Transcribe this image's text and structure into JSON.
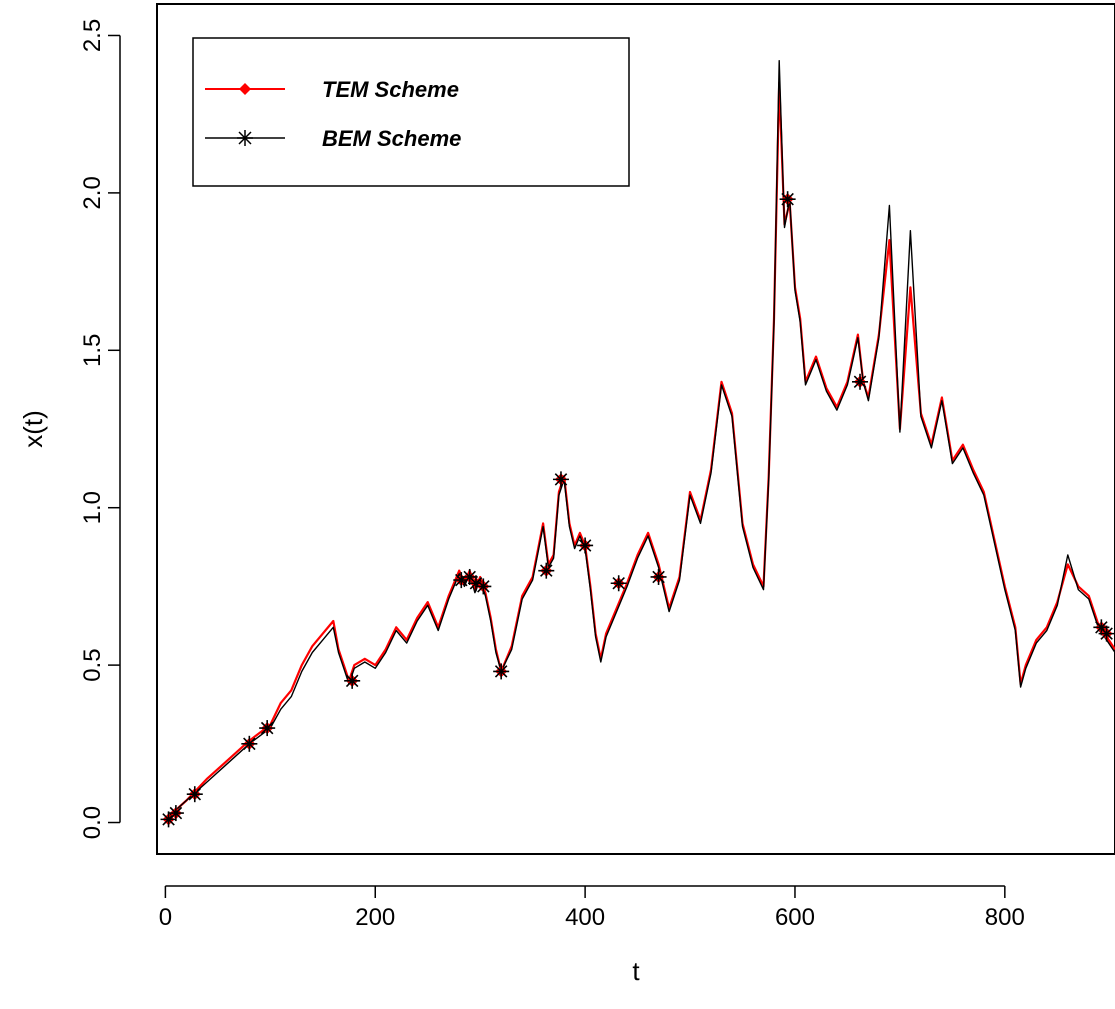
{
  "chart_data": {
    "type": "line",
    "title": "",
    "xlabel": "t",
    "ylabel": "x(t)",
    "xlim": [
      -8,
      905
    ],
    "ylim": [
      -0.1,
      2.6
    ],
    "x_ticks": [
      0,
      200,
      400,
      600,
      800
    ],
    "x_tick_labels": [
      "0",
      "200",
      "400",
      "600",
      "800"
    ],
    "y_ticks": [
      0.0,
      0.5,
      1.0,
      1.5,
      2.0,
      2.5
    ],
    "y_tick_labels": [
      "0.0",
      "0.5",
      "1.0",
      "1.5",
      "2.0",
      "2.5"
    ],
    "grid": false,
    "legend_position": "top-left",
    "legend": [
      {
        "label": "TEM Scheme",
        "color": "#ff0000",
        "marker": "filled-diamond"
      },
      {
        "label": "BEM Scheme",
        "color": "#000000",
        "marker": "asterisk"
      }
    ],
    "series": [
      {
        "name": "TEM Scheme",
        "color": "#ff0000",
        "x": [
          0,
          20,
          40,
          60,
          80,
          100,
          110,
          120,
          130,
          140,
          150,
          160,
          165,
          170,
          175,
          180,
          190,
          200,
          210,
          220,
          230,
          240,
          250,
          260,
          270,
          280,
          285,
          290,
          295,
          300,
          305,
          310,
          315,
          320,
          330,
          340,
          350,
          360,
          365,
          370,
          375,
          380,
          385,
          390,
          395,
          400,
          405,
          410,
          415,
          420,
          430,
          440,
          450,
          460,
          470,
          480,
          490,
          500,
          510,
          520,
          530,
          540,
          550,
          560,
          570,
          575,
          580,
          585,
          590,
          595,
          600,
          605,
          610,
          620,
          630,
          640,
          650,
          660,
          665,
          670,
          680,
          690,
          700,
          710,
          720,
          730,
          740,
          750,
          760,
          770,
          780,
          790,
          800,
          810,
          815,
          820,
          830,
          840,
          850,
          860,
          870,
          880,
          890,
          895,
          905
        ],
        "y": [
          0.01,
          0.07,
          0.14,
          0.2,
          0.26,
          0.31,
          0.38,
          0.42,
          0.5,
          0.56,
          0.6,
          0.64,
          0.55,
          0.5,
          0.45,
          0.5,
          0.52,
          0.5,
          0.55,
          0.62,
          0.58,
          0.65,
          0.7,
          0.62,
          0.72,
          0.8,
          0.76,
          0.8,
          0.74,
          0.78,
          0.73,
          0.65,
          0.55,
          0.48,
          0.56,
          0.72,
          0.78,
          0.95,
          0.82,
          0.85,
          1.05,
          1.1,
          0.95,
          0.88,
          0.92,
          0.88,
          0.75,
          0.6,
          0.52,
          0.6,
          0.68,
          0.76,
          0.85,
          0.92,
          0.82,
          0.68,
          0.78,
          1.05,
          0.96,
          1.12,
          1.4,
          1.3,
          0.95,
          0.82,
          0.75,
          1.1,
          1.6,
          2.35,
          1.9,
          1.97,
          1.7,
          1.6,
          1.4,
          1.48,
          1.38,
          1.32,
          1.4,
          1.55,
          1.4,
          1.35,
          1.55,
          1.85,
          1.25,
          1.7,
          1.3,
          1.2,
          1.35,
          1.15,
          1.2,
          1.12,
          1.05,
          0.9,
          0.75,
          0.62,
          0.44,
          0.5,
          0.58,
          0.62,
          0.7,
          0.82,
          0.75,
          0.72,
          0.62,
          0.6,
          0.55
        ]
      },
      {
        "name": "BEM Scheme",
        "color": "#000000",
        "x": [
          0,
          20,
          40,
          60,
          80,
          100,
          110,
          120,
          130,
          140,
          150,
          160,
          165,
          170,
          175,
          180,
          190,
          200,
          210,
          220,
          230,
          240,
          250,
          260,
          270,
          280,
          285,
          290,
          295,
          300,
          305,
          310,
          315,
          320,
          330,
          340,
          350,
          360,
          365,
          370,
          375,
          380,
          385,
          390,
          395,
          400,
          405,
          410,
          415,
          420,
          430,
          440,
          450,
          460,
          470,
          480,
          490,
          500,
          510,
          520,
          530,
          540,
          550,
          560,
          570,
          575,
          580,
          585,
          590,
          595,
          600,
          605,
          610,
          620,
          630,
          640,
          650,
          660,
          665,
          670,
          680,
          690,
          700,
          710,
          720,
          730,
          740,
          750,
          760,
          770,
          780,
          790,
          800,
          810,
          815,
          820,
          830,
          840,
          850,
          860,
          870,
          880,
          890,
          895,
          905
        ],
        "y": [
          0.01,
          0.07,
          0.13,
          0.19,
          0.25,
          0.3,
          0.36,
          0.4,
          0.48,
          0.54,
          0.58,
          0.62,
          0.54,
          0.49,
          0.44,
          0.49,
          0.51,
          0.49,
          0.54,
          0.61,
          0.57,
          0.64,
          0.69,
          0.61,
          0.71,
          0.79,
          0.75,
          0.79,
          0.73,
          0.77,
          0.72,
          0.64,
          0.54,
          0.48,
          0.55,
          0.71,
          0.77,
          0.94,
          0.81,
          0.84,
          1.04,
          1.09,
          0.94,
          0.87,
          0.91,
          0.87,
          0.74,
          0.59,
          0.51,
          0.59,
          0.67,
          0.75,
          0.84,
          0.91,
          0.81,
          0.67,
          0.77,
          1.04,
          0.95,
          1.11,
          1.39,
          1.29,
          0.94,
          0.81,
          0.74,
          1.09,
          1.59,
          2.42,
          1.89,
          1.98,
          1.69,
          1.59,
          1.39,
          1.47,
          1.37,
          1.31,
          1.39,
          1.54,
          1.4,
          1.34,
          1.54,
          1.96,
          1.24,
          1.88,
          1.29,
          1.19,
          1.34,
          1.14,
          1.19,
          1.11,
          1.04,
          0.89,
          0.74,
          0.61,
          0.43,
          0.49,
          0.57,
          0.61,
          0.69,
          0.85,
          0.74,
          0.71,
          0.61,
          0.59,
          0.54
        ]
      }
    ],
    "marker_points": {
      "x": [
        3,
        10,
        28,
        80,
        97,
        178,
        282,
        290,
        296,
        303,
        320,
        363,
        377,
        400,
        432,
        470,
        593,
        662,
        892,
        897
      ],
      "y": [
        0.01,
        0.03,
        0.09,
        0.25,
        0.3,
        0.45,
        0.77,
        0.78,
        0.76,
        0.75,
        0.48,
        0.8,
        1.09,
        0.88,
        0.76,
        0.78,
        1.98,
        1.4,
        0.62,
        0.6
      ]
    }
  }
}
